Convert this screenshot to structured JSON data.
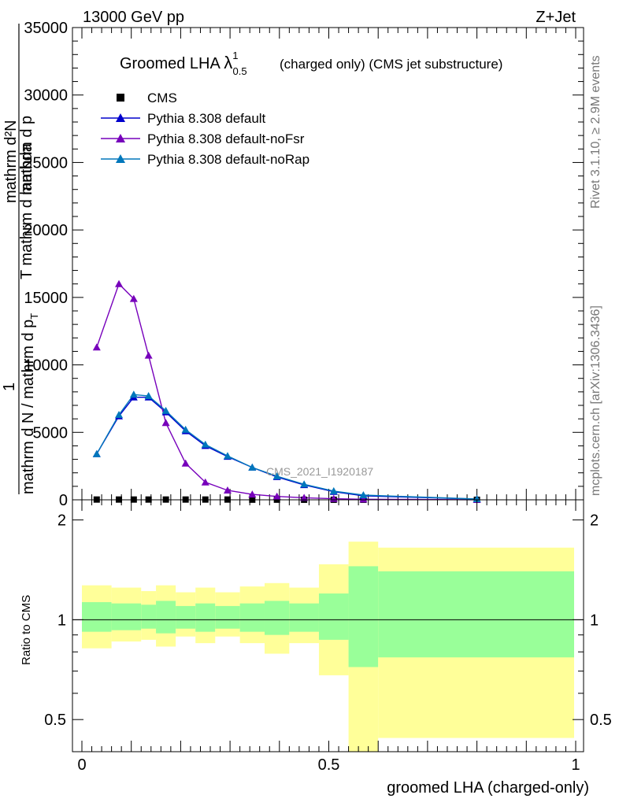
{
  "header": {
    "energy_label": "13000 GeV pp",
    "process_label": "Z+Jet",
    "rivet_label": "Rivet 3.1.10, ≥ 2.9M events",
    "mcplots_label": "mcplots.cern.ch [arXiv:1306.3436]"
  },
  "main_plot": {
    "title_main": "Groomed LHA ",
    "title_symbol": "λ",
    "title_sup": "1",
    "title_sub": "0.5",
    "title_rest": "(charged only) (CMS jet substructure)",
    "watermark": "CMS_2021_I1920187",
    "ylabel_numerator": "1",
    "ylabel_denominator": "mathrm d N / mathrm d p",
    "ylabel_sub": "T",
    "ylabel_overlay_a": "mathrm d²N",
    "ylabel_overlay_b": "mathrm d p",
    "ylabel_overlay_c": "T mathrm d lambda",
    "ytick_labels": [
      "0",
      "5000",
      "10000",
      "15000",
      "20000",
      "25000",
      "30000",
      "35000"
    ]
  },
  "ratio_plot": {
    "ylabel": "Ratio to CMS",
    "ytick_labels": [
      "0.5",
      "1",
      "2"
    ],
    "xtick_labels": [
      "0",
      "0.5",
      "1"
    ],
    "xlabel": "groomed LHA (charged-only)",
    "colors": {
      "band_outer": "#ffff99",
      "band_inner": "#99ff99"
    }
  },
  "legend": [
    {
      "label": "CMS",
      "color": "#000000",
      "marker": "square"
    },
    {
      "label": "Pythia 8.308 default",
      "color": "#0000cc",
      "marker": "triangle"
    },
    {
      "label": "Pythia 8.308 default-noFsr",
      "color": "#7700bb",
      "marker": "triangle"
    },
    {
      "label": "Pythia 8.308 default-noRap",
      "color": "#0077bb",
      "marker": "triangle"
    }
  ],
  "chart_data": [
    {
      "type": "line",
      "xlim": [
        0,
        1
      ],
      "ylim": [
        0,
        35000
      ],
      "x": [
        0.03,
        0.075,
        0.105,
        0.135,
        0.17,
        0.21,
        0.25,
        0.295,
        0.345,
        0.395,
        0.45,
        0.51,
        0.57,
        0.8
      ],
      "series": [
        {
          "name": "CMS",
          "color": "#000000",
          "values": [
            20,
            20,
            20,
            20,
            20,
            20,
            20,
            20,
            10,
            10,
            5,
            5,
            5,
            2
          ]
        },
        {
          "name": "Pythia 8.308 default",
          "color": "#0000cc",
          "values": [
            3400,
            6200,
            7600,
            7600,
            6500,
            5100,
            4000,
            3200,
            2400,
            1700,
            1100,
            600,
            300,
            50
          ]
        },
        {
          "name": "Pythia 8.308 default-noFsr",
          "color": "#7700bb",
          "values": [
            11300,
            16000,
            14900,
            10700,
            5700,
            2700,
            1300,
            700,
            400,
            250,
            150,
            80,
            40,
            5
          ]
        },
        {
          "name": "Pythia 8.308 default-noRap",
          "color": "#0077bb",
          "values": [
            3400,
            6300,
            7800,
            7700,
            6600,
            5200,
            4100,
            3250,
            2400,
            1750,
            1150,
            650,
            350,
            60
          ]
        }
      ]
    },
    {
      "type": "area",
      "xlim": [
        0,
        1
      ],
      "ylim": [
        0.4,
        2.3
      ],
      "ylabel": "Ratio to CMS",
      "bins": [
        {
          "lo": 0.0,
          "hi": 0.06,
          "inner": [
            0.92,
            1.13
          ],
          "outer": [
            0.82,
            1.27
          ]
        },
        {
          "lo": 0.06,
          "hi": 0.12,
          "inner": [
            0.93,
            1.12
          ],
          "outer": [
            0.86,
            1.25
          ]
        },
        {
          "lo": 0.12,
          "hi": 0.15,
          "inner": [
            0.94,
            1.11
          ],
          "outer": [
            0.87,
            1.22
          ]
        },
        {
          "lo": 0.15,
          "hi": 0.19,
          "inner": [
            0.91,
            1.14
          ],
          "outer": [
            0.83,
            1.27
          ]
        },
        {
          "lo": 0.19,
          "hi": 0.23,
          "inner": [
            0.94,
            1.1
          ],
          "outer": [
            0.89,
            1.21
          ]
        },
        {
          "lo": 0.23,
          "hi": 0.27,
          "inner": [
            0.92,
            1.12
          ],
          "outer": [
            0.85,
            1.25
          ]
        },
        {
          "lo": 0.27,
          "hi": 0.32,
          "inner": [
            0.94,
            1.1
          ],
          "outer": [
            0.89,
            1.21
          ]
        },
        {
          "lo": 0.32,
          "hi": 0.37,
          "inner": [
            0.92,
            1.12
          ],
          "outer": [
            0.85,
            1.26
          ]
        },
        {
          "lo": 0.37,
          "hi": 0.42,
          "inner": [
            0.9,
            1.14
          ],
          "outer": [
            0.79,
            1.29
          ]
        },
        {
          "lo": 0.42,
          "hi": 0.48,
          "inner": [
            0.92,
            1.12
          ],
          "outer": [
            0.85,
            1.25
          ]
        },
        {
          "lo": 0.48,
          "hi": 0.54,
          "inner": [
            0.87,
            1.2
          ],
          "outer": [
            0.68,
            1.47
          ]
        },
        {
          "lo": 0.54,
          "hi": 0.6,
          "inner": [
            0.72,
            1.45
          ],
          "outer": [
            0.38,
            1.72
          ]
        },
        {
          "lo": 0.6,
          "hi": 1.0,
          "inner": [
            0.77,
            1.4
          ],
          "outer": [
            0.44,
            1.65
          ]
        }
      ],
      "reference_line": 1
    }
  ]
}
